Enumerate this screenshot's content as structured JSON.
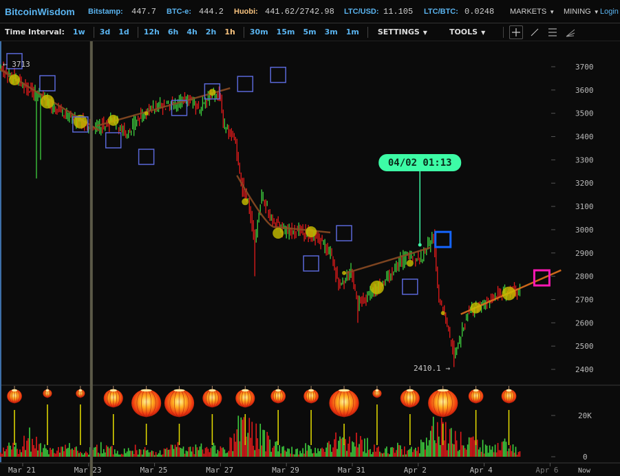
{
  "header": {
    "brand": "BitcoinWisdom",
    "tickers": [
      {
        "label": "Bitstamp:",
        "value": "447.7"
      },
      {
        "label": "BTC-e:",
        "value": "444.2"
      },
      {
        "label": "Huobi:",
        "value": "441.62/2742.98"
      },
      {
        "label": "LTC/USD:",
        "value": "11.105"
      },
      {
        "label": "LTC/BTC:",
        "value": "0.0248"
      }
    ],
    "markets": "MARKETS",
    "mining": "MINING",
    "login": "Login"
  },
  "toolbar": {
    "time_interval_label": "Time Interval:",
    "intervals": [
      "1w",
      "3d",
      "1d",
      "12h",
      "6h",
      "4h",
      "2h",
      "1h",
      "30m",
      "15m",
      "5m",
      "3m",
      "1m"
    ],
    "active_interval": "1h",
    "settings": "SETTINGS",
    "tools": "TOOLS",
    "tool_icons": [
      "crosshair-icon",
      "trend-line-icon",
      "horizontal-lines-icon",
      "fan-icon"
    ]
  },
  "chart_data": {
    "type": "candlestick",
    "x_ticks": [
      "Mar 21",
      "Mar 23",
      "Mar 25",
      "Mar 27",
      "Mar 29",
      "Mar 31",
      "Apr 2",
      "Apr 4",
      "Apr 6"
    ],
    "x_now_label": "Now",
    "y_ticks": [
      3700,
      3600,
      3500,
      3400,
      3300,
      3200,
      3100,
      3000,
      2900,
      2800,
      2700,
      2600,
      2500,
      2400
    ],
    "ylim": [
      2400,
      3700
    ],
    "volume_ticks": [
      "20K",
      "0"
    ],
    "high_label": "3713",
    "low_label": "2410.1",
    "cursor_tooltip": "04/02 01:13",
    "cursor_time": "04-02 01:13",
    "cursor_line_time": "03-23 02:00",
    "colors": {
      "up": "#3fd23f",
      "down": "#e41b1b",
      "background": "#0b0b0b",
      "tooltip": "#3dfca6",
      "trend": "#8a4a22",
      "trend_active": "#e0701c",
      "marker": "#c8c000",
      "square": "#5a68d8",
      "square_active": "#1565ff",
      "square_pink": "#ff18b4"
    },
    "price_path": [
      [
        "03-20 08:00",
        3700
      ],
      [
        "03-20 18:00",
        3650
      ],
      [
        "03-21 04:00",
        3600
      ],
      [
        "03-21 18:00",
        3550
      ],
      [
        "03-22 10:00",
        3480
      ],
      [
        "03-22 20:00",
        3460
      ],
      [
        "03-23 08:00",
        3440
      ],
      [
        "03-23 18:00",
        3470
      ],
      [
        "03-24 04:00",
        3400
      ],
      [
        "03-24 12:00",
        3480
      ],
      [
        "03-24 22:00",
        3520
      ],
      [
        "03-25 13:00",
        3540
      ],
      [
        "03-25 23:00",
        3560
      ],
      [
        "03-26 09:00",
        3520
      ],
      [
        "03-26 19:00",
        3590
      ],
      [
        "03-27 00:00",
        3560
      ],
      [
        "03-27 02:00",
        3450
      ],
      [
        "03-27 10:00",
        3400
      ],
      [
        "03-27 15:00",
        3200
      ],
      [
        "03-27 20:00",
        3120
      ],
      [
        "03-28 01:00",
        2950
      ],
      [
        "03-28 06:00",
        3150
      ],
      [
        "03-28 13:00",
        3050
      ],
      [
        "03-28 21:00",
        3000
      ],
      [
        "03-29 12:00",
        2990
      ],
      [
        "03-29 22:00",
        2970
      ],
      [
        "03-30 08:00",
        2900
      ],
      [
        "03-30 15:00",
        2750
      ],
      [
        "03-30 23:00",
        2820
      ],
      [
        "03-31 04:00",
        2680
      ],
      [
        "03-31 09:00",
        2700
      ],
      [
        "03-31 19:00",
        2760
      ],
      [
        "04-01 05:00",
        2820
      ],
      [
        "04-01 15:00",
        2890
      ],
      [
        "04-02 01:00",
        2870
      ],
      [
        "04-02 09:00",
        2950
      ],
      [
        "04-02 11:00",
        2980
      ],
      [
        "04-02 15:00",
        2700
      ],
      [
        "04-02 19:00",
        2640
      ],
      [
        "04-03 00:00",
        2520
      ],
      [
        "04-03 02:00",
        2460
      ],
      [
        "04-03 07:00",
        2550
      ],
      [
        "04-03 12:00",
        2640
      ],
      [
        "04-03 22:00",
        2680
      ],
      [
        "04-04 08:00",
        2720
      ],
      [
        "04-04 18:00",
        2730
      ],
      [
        "04-05 02:00",
        2740
      ]
    ],
    "spike_lows": [
      [
        "03-21 10:00",
        3220
      ],
      [
        "03-21 13:00",
        3300
      ],
      [
        "03-28 01:00",
        2800
      ],
      [
        "03-31 04:00",
        2600
      ],
      [
        "04-03 02:00",
        2410
      ]
    ],
    "trend_lines": [
      {
        "from": [
          "03-20 07:00",
          3691
        ],
        "to": [
          "03-23 08:00",
          3425
        ]
      },
      {
        "from": [
          "03-23 06:00",
          3446
        ],
        "to": [
          "03-27 07:00",
          3608
        ]
      },
      {
        "from": [
          "03-27 12:00",
          3233
        ],
        "to": [
          "03-28 16:00",
          3012
        ],
        "to2": [
          "03-30 08:00",
          2988
        ]
      },
      {
        "from": [
          "03-30 18:00",
          2811
        ],
        "to": [
          "04-02 09:00",
          2923
        ]
      },
      {
        "from": [
          "04-03 07:00",
          2637
        ],
        "to": [
          "04-06 08:00",
          2826
        ],
        "active": true
      }
    ],
    "markers": [
      [
        "03-20 18:00",
        3644,
        "medium"
      ],
      [
        "03-21 18:00",
        3550,
        "large"
      ],
      [
        "03-22 18:00",
        3464,
        "large"
      ],
      [
        "03-23 18:00",
        3470,
        "medium"
      ],
      [
        "03-24 18:00",
        3500,
        "tiny"
      ],
      [
        "03-26 18:00",
        3590,
        "small"
      ],
      [
        "03-27 18:00",
        3120,
        "small"
      ],
      [
        "03-28 18:00",
        2985,
        "medium"
      ],
      [
        "03-29 18:00",
        2991,
        "medium"
      ],
      [
        "03-30 18:00",
        2814,
        "tiny"
      ],
      [
        "03-31 18:00",
        2752,
        "large"
      ],
      [
        "04-01 18:00",
        2856,
        "small"
      ],
      [
        "04-02 18:00",
        2642,
        "tiny"
      ],
      [
        "04-03 18:00",
        2664,
        "medium"
      ],
      [
        "04-04 18:00",
        2726,
        "large"
      ]
    ],
    "squares": [
      [
        "03-20 18:00",
        3724
      ],
      [
        "03-21 18:00",
        3629
      ],
      [
        "03-22 18:00",
        3452
      ],
      [
        "03-23 18:00",
        3384
      ],
      [
        "03-24 18:00",
        3313
      ],
      [
        "03-25 18:00",
        3523
      ],
      [
        "03-26 18:00",
        3594
      ],
      [
        "03-27 18:00",
        3626
      ],
      [
        "03-28 18:00",
        3665
      ],
      [
        "03-29 18:00",
        2855
      ],
      [
        "03-30 18:00",
        2985
      ],
      [
        "04-01 18:00",
        2755
      ]
    ],
    "square_active": [
      "04-02 18:00",
      2958
    ],
    "square_pink": [
      "04-05 18:00",
      2793
    ],
    "lanterns": [
      [
        "03-20 18:00",
        "small"
      ],
      [
        "03-21 18:00",
        "tiny"
      ],
      [
        "03-22 18:00",
        "tiny"
      ],
      [
        "03-23 18:00",
        "medium"
      ],
      [
        "03-24 18:00",
        "large"
      ],
      [
        "03-25 18:00",
        "large"
      ],
      [
        "03-26 18:00",
        "medium"
      ],
      [
        "03-27 18:00",
        "medium"
      ],
      [
        "03-28 18:00",
        "small"
      ],
      [
        "03-29 18:00",
        "small"
      ],
      [
        "03-30 18:00",
        "large"
      ],
      [
        "03-31 18:00",
        "tiny"
      ],
      [
        "04-01 18:00",
        "medium"
      ],
      [
        "04-02 18:00",
        "large"
      ],
      [
        "04-03 18:00",
        "small"
      ],
      [
        "04-04 18:00",
        "small"
      ]
    ],
    "volume_k_by_day": {
      "03-20": [
        0,
        3,
        5,
        4
      ],
      "03-21": [
        9,
        6,
        4,
        3
      ],
      "03-22": [
        3,
        4,
        3,
        2
      ],
      "03-23": [
        3,
        5,
        4,
        3
      ],
      "03-24": [
        3,
        4,
        3,
        2
      ],
      "03-25": [
        2,
        3,
        5,
        3
      ],
      "03-26": [
        3,
        4,
        3,
        4
      ],
      "03-27": [
        3,
        8,
        15,
        12
      ],
      "03-28": [
        10,
        8,
        6,
        4
      ],
      "03-29": [
        3,
        3,
        4,
        3
      ],
      "03-30": [
        3,
        5,
        7,
        6
      ],
      "03-31": [
        8,
        6,
        4,
        3
      ],
      "04-01": [
        3,
        4,
        3,
        4
      ],
      "04-02": [
        5,
        12,
        14,
        10
      ],
      "04-03": [
        9,
        8,
        6,
        5
      ],
      "04-04": [
        4,
        5,
        6,
        4
      ],
      "04-05": [
        2
      ]
    }
  }
}
